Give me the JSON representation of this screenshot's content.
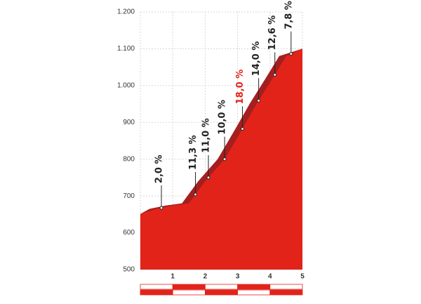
{
  "chart_data": {
    "type": "area",
    "x": [
      0,
      0.5,
      1,
      1.5,
      2,
      2.6,
      2.8,
      3.2,
      3.6,
      4.1,
      4.5,
      5
    ],
    "values": [
      651,
      665,
      674,
      680,
      740,
      800,
      830,
      890,
      952,
      1022,
      1080,
      1100
    ],
    "color": "#e2231a",
    "shade_color": "#a51f1f",
    "xlim": [
      0,
      5
    ],
    "xticks": [
      1,
      2,
      3,
      4,
      5
    ],
    "ylim": [
      500,
      1200
    ],
    "yticks": [
      500,
      600,
      700,
      800,
      900,
      {
        "value": 1000,
        "label": "1.000"
      },
      {
        "value": 1100,
        "label": "1.100"
      },
      {
        "value": 1200,
        "label": "1.200"
      }
    ],
    "grid": true,
    "gradients": {
      "x": [
        0.65,
        1.7,
        2.1,
        2.6,
        3.15,
        3.65,
        4.15,
        4.65
      ],
      "values": [
        2.0,
        11.3,
        11.0,
        10.0,
        18.0,
        14.0,
        12.6,
        7.8
      ],
      "value_labels": [
        "2,0 %",
        "11,3 %",
        "11,0 %",
        "10,0 %",
        "18,0 %",
        "14,0 %",
        "12,6 %",
        "7,8 %"
      ],
      "colors": [
        "#222222",
        "#222222",
        "#222222",
        "#222222",
        "#e2231a",
        "#222222",
        "#222222",
        "#222222"
      ]
    }
  }
}
